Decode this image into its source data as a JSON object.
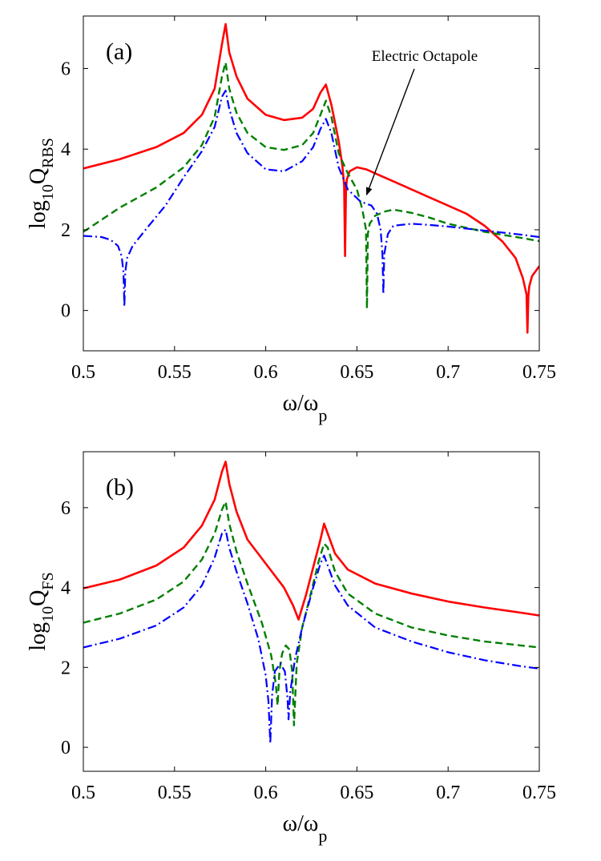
{
  "chart_data": [
    {
      "type": "line",
      "panel_label": "(a)",
      "xlabel": "ω/ω",
      "xlabel_sub": "p",
      "ylabel_prefix": "log",
      "ylabel_sub1": "10",
      "ylabel_main": "Q",
      "ylabel_sub2": "RBS",
      "xlim": [
        0.5,
        0.75
      ],
      "ylim": [
        -1,
        7.3
      ],
      "xticks": [
        0.5,
        0.55,
        0.6,
        0.65,
        0.7,
        0.75
      ],
      "xtick_labels": [
        "0.5",
        "0.55",
        "0.6",
        "0.65",
        "0.7",
        "0.75"
      ],
      "yticks": [
        0,
        2,
        4,
        6
      ],
      "ytick_labels": [
        "0",
        "2",
        "4",
        "6"
      ],
      "annotation": {
        "text": "Electric Octapole",
        "x": 0.654,
        "y": 2.75
      },
      "series": [
        {
          "name": "solid",
          "color": "#ff0000",
          "dash": "solid",
          "x": [
            0.5,
            0.52,
            0.54,
            0.555,
            0.565,
            0.572,
            0.576,
            0.578,
            0.58,
            0.584,
            0.59,
            0.6,
            0.61,
            0.62,
            0.626,
            0.63,
            0.633,
            0.636,
            0.64,
            0.642,
            0.643,
            0.6435,
            0.644,
            0.6445,
            0.646,
            0.65,
            0.655,
            0.66,
            0.67,
            0.68,
            0.69,
            0.7,
            0.71,
            0.72,
            0.73,
            0.737,
            0.741,
            0.743,
            0.7435,
            0.744,
            0.7445,
            0.746,
            0.75
          ],
          "y": [
            3.52,
            3.75,
            4.05,
            4.4,
            4.85,
            5.5,
            6.6,
            7.1,
            6.4,
            5.8,
            5.25,
            4.85,
            4.72,
            4.78,
            5.0,
            5.4,
            5.6,
            5.1,
            4.2,
            3.6,
            3.1,
            1.35,
            3.0,
            3.25,
            3.45,
            3.55,
            3.5,
            3.4,
            3.2,
            3.0,
            2.8,
            2.6,
            2.4,
            2.1,
            1.7,
            1.3,
            0.8,
            0.4,
            -0.55,
            0.35,
            0.6,
            0.85,
            1.1
          ]
        },
        {
          "name": "dashed",
          "color": "#007f00",
          "dash": "dashed",
          "x": [
            0.5,
            0.52,
            0.54,
            0.555,
            0.565,
            0.572,
            0.576,
            0.578,
            0.58,
            0.584,
            0.59,
            0.6,
            0.61,
            0.62,
            0.626,
            0.63,
            0.633,
            0.636,
            0.64,
            0.645,
            0.65,
            0.653,
            0.655,
            0.6555,
            0.656,
            0.657,
            0.66,
            0.665,
            0.67,
            0.68,
            0.69,
            0.7,
            0.72,
            0.74,
            0.75
          ],
          "y": [
            1.95,
            2.55,
            3.05,
            3.55,
            4.1,
            4.8,
            5.8,
            6.15,
            5.5,
            4.9,
            4.4,
            4.05,
            3.98,
            4.1,
            4.4,
            4.85,
            5.2,
            4.8,
            3.9,
            3.4,
            3.0,
            2.5,
            2.0,
            0.05,
            1.9,
            2.15,
            2.35,
            2.45,
            2.5,
            2.42,
            2.3,
            2.15,
            1.95,
            1.8,
            1.72
          ]
        },
        {
          "name": "dashdot",
          "color": "#0000ff",
          "dash": "dashdot",
          "x": [
            0.5,
            0.51,
            0.515,
            0.519,
            0.521,
            0.522,
            0.5225,
            0.523,
            0.524,
            0.527,
            0.535,
            0.545,
            0.555,
            0.565,
            0.572,
            0.576,
            0.578,
            0.58,
            0.584,
            0.59,
            0.6,
            0.61,
            0.62,
            0.626,
            0.63,
            0.633,
            0.636,
            0.64,
            0.645,
            0.652,
            0.658,
            0.661,
            0.663,
            0.664,
            0.6645,
            0.665,
            0.667,
            0.67,
            0.68,
            0.69,
            0.7,
            0.72,
            0.74,
            0.75
          ],
          "y": [
            1.85,
            1.82,
            1.75,
            1.6,
            1.35,
            0.95,
            0.1,
            0.95,
            1.3,
            1.6,
            2.05,
            2.6,
            3.3,
            3.95,
            4.55,
            5.3,
            5.45,
            5.0,
            4.4,
            3.9,
            3.5,
            3.45,
            3.7,
            4.05,
            4.5,
            4.75,
            4.4,
            3.55,
            3.0,
            2.7,
            2.6,
            2.4,
            2.0,
            1.4,
            0.4,
            1.4,
            1.9,
            2.1,
            2.15,
            2.12,
            2.08,
            1.98,
            1.88,
            1.82
          ]
        }
      ]
    },
    {
      "type": "line",
      "panel_label": "(b)",
      "xlabel": "ω/ω",
      "xlabel_sub": "p",
      "ylabel_prefix": "log",
      "ylabel_sub1": "10",
      "ylabel_main": "Q",
      "ylabel_sub2": "FS",
      "xlim": [
        0.5,
        0.75
      ],
      "ylim": [
        -0.6,
        7.4
      ],
      "xticks": [
        0.5,
        0.55,
        0.6,
        0.65,
        0.7,
        0.75
      ],
      "xtick_labels": [
        "0.5",
        "0.55",
        "0.6",
        "0.65",
        "0.7",
        "0.75"
      ],
      "yticks": [
        0,
        2,
        4,
        6
      ],
      "ytick_labels": [
        "0",
        "2",
        "4",
        "6"
      ],
      "series": [
        {
          "name": "solid",
          "color": "#ff0000",
          "dash": "solid",
          "x": [
            0.5,
            0.52,
            0.54,
            0.555,
            0.565,
            0.572,
            0.576,
            0.578,
            0.58,
            0.584,
            0.59,
            0.6,
            0.61,
            0.615,
            0.618,
            0.622,
            0.626,
            0.63,
            0.632,
            0.634,
            0.638,
            0.645,
            0.66,
            0.68,
            0.7,
            0.72,
            0.74,
            0.75
          ],
          "y": [
            3.98,
            4.2,
            4.55,
            5.0,
            5.55,
            6.2,
            6.9,
            7.15,
            6.6,
            5.9,
            5.2,
            4.6,
            4.0,
            3.55,
            3.2,
            3.8,
            4.5,
            5.2,
            5.6,
            5.35,
            4.85,
            4.45,
            4.1,
            3.85,
            3.65,
            3.5,
            3.37,
            3.3
          ]
        },
        {
          "name": "dashed",
          "color": "#007f00",
          "dash": "dashed",
          "x": [
            0.5,
            0.52,
            0.54,
            0.555,
            0.565,
            0.572,
            0.576,
            0.578,
            0.58,
            0.584,
            0.59,
            0.598,
            0.603,
            0.6055,
            0.6065,
            0.6075,
            0.609,
            0.611,
            0.613,
            0.6145,
            0.6155,
            0.617,
            0.62,
            0.625,
            0.629,
            0.632,
            0.634,
            0.638,
            0.645,
            0.66,
            0.68,
            0.7,
            0.72,
            0.74,
            0.75
          ],
          "y": [
            3.12,
            3.35,
            3.7,
            4.15,
            4.7,
            5.35,
            5.95,
            6.15,
            5.6,
            4.9,
            4.1,
            3.1,
            2.3,
            1.6,
            1.05,
            1.9,
            2.35,
            2.55,
            2.45,
            1.9,
            0.55,
            2.1,
            3.0,
            3.9,
            4.65,
            5.1,
            5.0,
            4.4,
            3.85,
            3.35,
            3.0,
            2.8,
            2.65,
            2.55,
            2.5
          ]
        },
        {
          "name": "dashdot",
          "color": "#0000ff",
          "dash": "dashdot",
          "x": [
            0.5,
            0.52,
            0.54,
            0.555,
            0.565,
            0.572,
            0.576,
            0.578,
            0.58,
            0.584,
            0.59,
            0.596,
            0.6,
            0.6015,
            0.6025,
            0.6035,
            0.605,
            0.608,
            0.6105,
            0.612,
            0.6125,
            0.6135,
            0.616,
            0.62,
            0.626,
            0.63,
            0.632,
            0.634,
            0.638,
            0.645,
            0.66,
            0.68,
            0.7,
            0.72,
            0.74,
            0.75
          ],
          "y": [
            2.5,
            2.72,
            3.05,
            3.5,
            4.05,
            4.75,
            5.35,
            5.45,
            5.0,
            4.4,
            3.6,
            2.7,
            1.8,
            1.15,
            0.1,
            1.3,
            1.9,
            2.1,
            1.9,
            1.2,
            0.7,
            1.4,
            2.2,
            3.0,
            4.0,
            4.6,
            4.8,
            4.55,
            4.05,
            3.55,
            3.0,
            2.65,
            2.38,
            2.18,
            2.03,
            1.97
          ]
        }
      ]
    }
  ]
}
